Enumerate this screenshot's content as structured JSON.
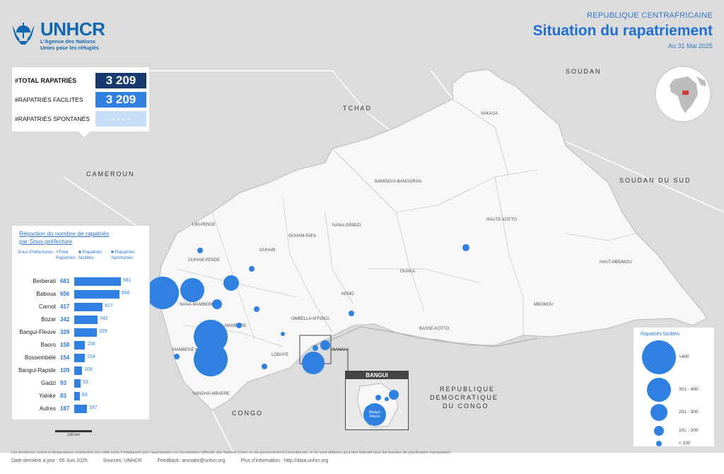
{
  "header": {
    "country": "REPUBLIQUE CENTRAFRICAINE",
    "title": "Situation du rapatriement",
    "date": "Au 31 Mai 2025"
  },
  "logo": {
    "name": "UNHCR",
    "sub1": "L’Agence des Nations",
    "sub2": "Unies pour les réfugiés"
  },
  "kpi": {
    "total_label": "#TOTAL RAPATRIÉS",
    "total_value": "3 209",
    "facilites_label": "#RAPATRIÉS FACILITÉS",
    "facilites_value": "3 209",
    "spontanes_label": "#RAPATRIÉS SPONTANÉS",
    "spontanes_value": "- - - -"
  },
  "country_labels": {
    "tchad": "TCHAD",
    "soudan": "SOUDAN",
    "cameroun": "CAMEROUN",
    "soudan_du_sud": "SOUDAN DU SUD",
    "rdc1": "REPUBLIQUE",
    "rdc2": "DEMOCRATIQUE",
    "rdc3": "DU CONGO",
    "congo": "CONGO"
  },
  "prefecture_labels": [
    {
      "name": "VAKAGA"
    },
    {
      "name": "BAMINGUI-BANGORAN"
    },
    {
      "name": "HAUTE-KOTTO"
    },
    {
      "name": "HAUT-MBOMOU"
    },
    {
      "name": "MBOMOU"
    },
    {
      "name": "BASSE-KOTTO"
    },
    {
      "name": "OUAKA"
    },
    {
      "name": "KEMO"
    },
    {
      "name": "NANA-GRIBIZI"
    },
    {
      "name": "OUHAM-FAFA"
    },
    {
      "name": "OUHAM"
    },
    {
      "name": "LIM-PENDE"
    },
    {
      "name": "OUHAM-PENDE"
    },
    {
      "name": "NANA-MAMBERE"
    },
    {
      "name": "MAMBERE"
    },
    {
      "name": "OMBELLA-M'POKO"
    },
    {
      "name": "LOBAYE"
    },
    {
      "name": "SANGHA-MBAERE"
    },
    {
      "name": "MAMBERE-KADEI"
    }
  ],
  "bars": {
    "title_line1": "Répartion du nombre de rapatriés",
    "title_line2": "par Sous-préfecture",
    "head_col1": "Sous-Préfectures",
    "head_col2": "#Total Rapatriés",
    "head_col3": "■ Rapatriés facilités",
    "head_col4": "■ Rapatriés Spontanés",
    "max": 681,
    "rows": [
      {
        "name": "Berberati",
        "total": "681",
        "value": 681
      },
      {
        "name": "Baboua",
        "total": "656",
        "value": 656
      },
      {
        "name": "Carnot",
        "total": "417",
        "value": 417
      },
      {
        "name": "Bozar",
        "total": "342",
        "value": 342
      },
      {
        "name": "Bangui-Fleuve",
        "total": "329",
        "value": 329
      },
      {
        "name": "Baoro",
        "total": "158",
        "value": 158
      },
      {
        "name": "Bossembélé",
        "total": "154",
        "value": 154
      },
      {
        "name": "Bangui-Rapide",
        "total": "109",
        "value": 109
      },
      {
        "name": "Gadzi",
        "total": "93",
        "value": 93
      },
      {
        "name": "Yaloke",
        "total": "83",
        "value": 83
      },
      {
        "name": "Autres",
        "total": "187",
        "value": 187
      }
    ]
  },
  "legend": {
    "title": "Rapatriés facilités",
    "items": [
      {
        "label": ">400"
      },
      {
        "label": "301 - 400"
      },
      {
        "label": "201 - 300"
      },
      {
        "label": "101 - 200"
      },
      {
        "label": "< 100"
      }
    ]
  },
  "inset": {
    "title": "BANGUI",
    "bubble_label1": "Bangui",
    "bubble_label2": "Fleuve"
  },
  "map_labels": {
    "bangui": "BANGUI",
    "scale": "100 km"
  },
  "footer": {
    "disclaimer": "Les frontières, noms et désignations employées sur cette carte n’impliquent pas l’approbation ou l’acceptation officielle des Nations Unies ou du gouvernement Centrafricain, et ne sont utilisées qu’à titre indicatif pour les besoins de planification humanitaire.",
    "update": "Date dernière à jour : 05 Juin 2025",
    "sources": "Sources: UNHCR",
    "feedback": "Feedback: arsnake@unhcr.org",
    "more": "Plus d’information : http://data.unhcr.org"
  },
  "colors": {
    "land_car": "#f7f7f7",
    "land_other": "#dcdcdc",
    "bubble": "#2f80e0",
    "kpi_dark": "#173a6e",
    "title_blue": "#1f6fd1"
  }
}
